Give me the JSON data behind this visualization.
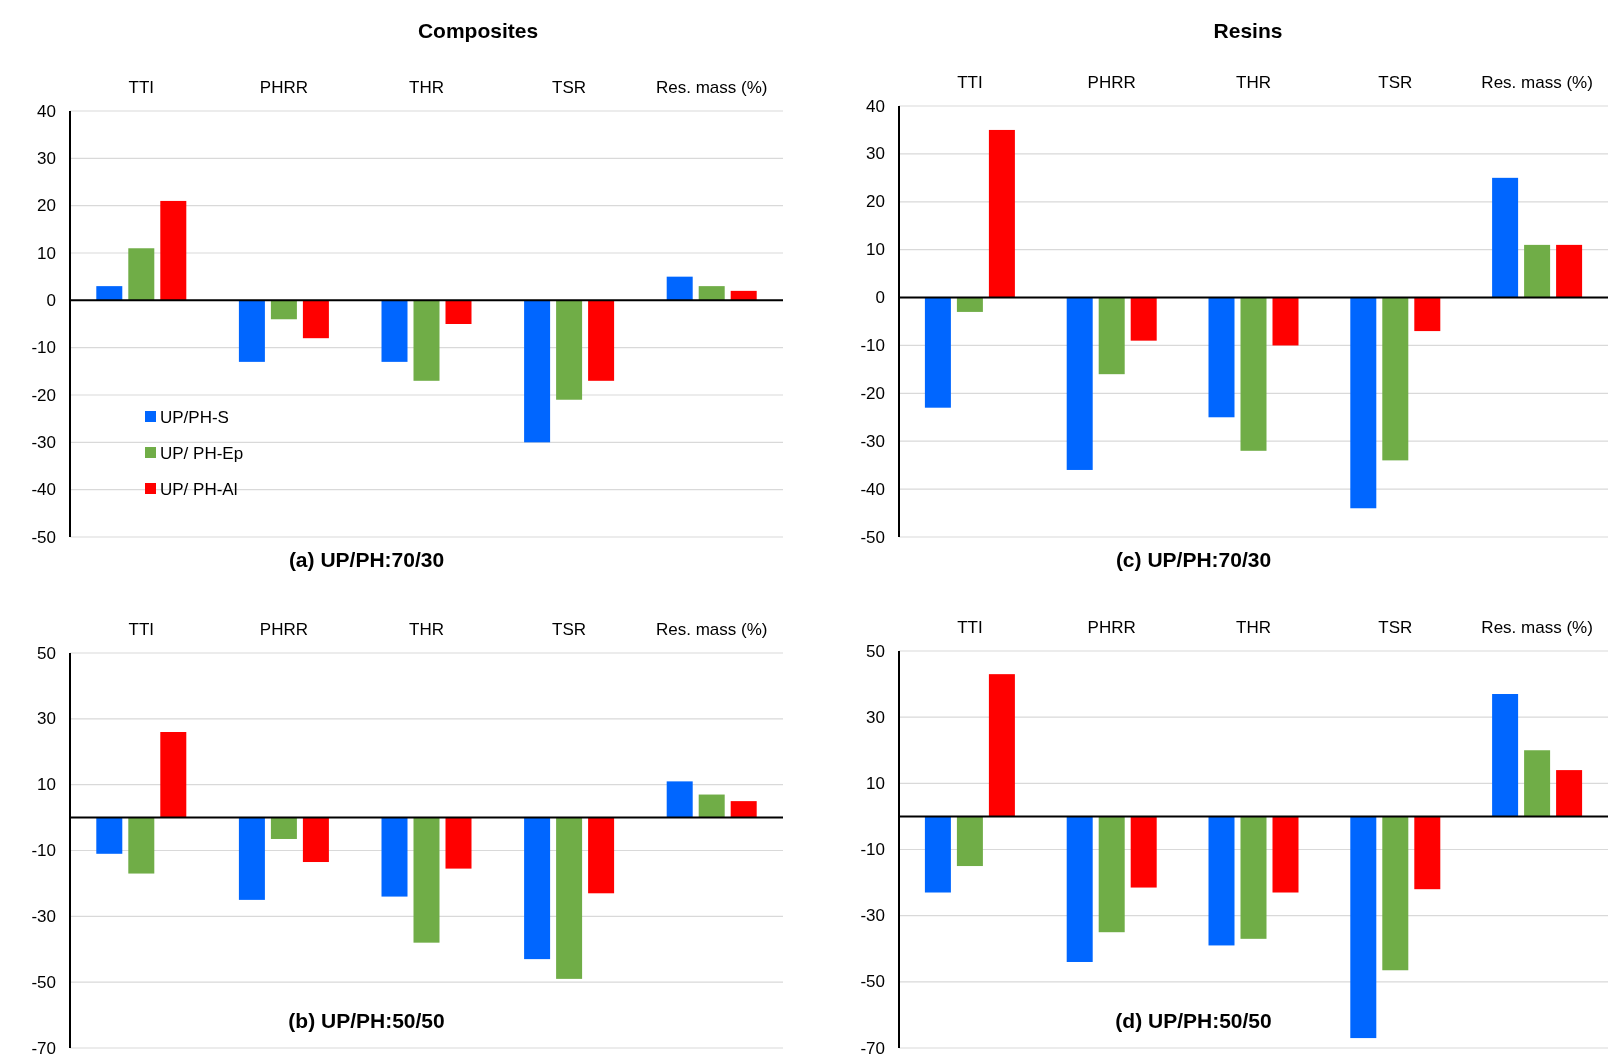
{
  "chart_data": [
    {
      "type": "bar",
      "title": "Composites",
      "xlabel": "(a) UP/PH:70/30",
      "categories": [
        "TTI",
        "PHRR",
        "THR",
        "TSR",
        "Res. mass (%)"
      ],
      "ylim": [
        -50,
        40
      ],
      "yticks": [
        -50,
        -40,
        -30,
        -20,
        -10,
        0,
        10,
        20,
        30,
        40
      ],
      "grid": "y",
      "legend": "bottom left",
      "series": [
        {
          "name": "UP/PH-S",
          "color": "#0066ff",
          "values": [
            3,
            -13,
            -13,
            -30,
            5
          ]
        },
        {
          "name": "UP/ PH-Ep",
          "color": "#70ad47",
          "values": [
            11,
            -4,
            -17,
            -21,
            3
          ]
        },
        {
          "name": "UP/ PH-Al",
          "color": "#ff0000",
          "values": [
            21,
            -8,
            -5,
            -17,
            2
          ]
        }
      ]
    },
    {
      "type": "bar",
      "title": "Resins",
      "xlabel": "(c) UP/PH:70/30",
      "categories": [
        "TTI",
        "PHRR",
        "THR",
        "TSR",
        "Res. mass (%)"
      ],
      "ylim": [
        -50,
        40
      ],
      "yticks": [
        -50,
        -40,
        -30,
        -20,
        -10,
        0,
        10,
        20,
        30,
        40
      ],
      "grid": "y",
      "series": [
        {
          "color": "#0066ff",
          "values": [
            -23,
            -36,
            -25,
            -44,
            25
          ]
        },
        {
          "color": "#70ad47",
          "values": [
            -3,
            -16,
            -32,
            -34,
            11
          ]
        },
        {
          "color": "#ff0000",
          "values": [
            35,
            -9,
            -10,
            -7,
            11
          ]
        }
      ]
    },
    {
      "type": "bar",
      "xlabel": "(b) UP/PH:50/50",
      "categories": [
        "TTI",
        "PHRR",
        "THR",
        "TSR",
        "Res. mass (%)"
      ],
      "ylim": [
        -70,
        50
      ],
      "yticks": [
        -70,
        -50,
        -30,
        -10,
        10,
        30,
        50
      ],
      "grid": "y",
      "series": [
        {
          "color": "#0066ff",
          "values": [
            -11,
            -25,
            -24,
            -43,
            11
          ]
        },
        {
          "color": "#70ad47",
          "values": [
            -17,
            -6.5,
            -38,
            -49,
            7
          ]
        },
        {
          "color": "#ff0000",
          "values": [
            26,
            -13.5,
            -15.5,
            -23,
            5
          ]
        }
      ]
    },
    {
      "type": "bar",
      "xlabel": "(d) UP/PH:50/50",
      "categories": [
        "TTI",
        "PHRR",
        "THR",
        "TSR",
        "Res. mass (%)"
      ],
      "ylim": [
        -70,
        50
      ],
      "yticks": [
        -70,
        -50,
        -30,
        -10,
        10,
        30,
        50
      ],
      "grid": "y",
      "series": [
        {
          "color": "#0066ff",
          "values": [
            -23,
            -44,
            -39,
            -67,
            37
          ]
        },
        {
          "color": "#70ad47",
          "values": [
            -15,
            -35,
            -37,
            -46.5,
            20
          ]
        },
        {
          "color": "#ff0000",
          "values": [
            43,
            -21.5,
            -23,
            -22,
            14
          ]
        }
      ]
    }
  ]
}
